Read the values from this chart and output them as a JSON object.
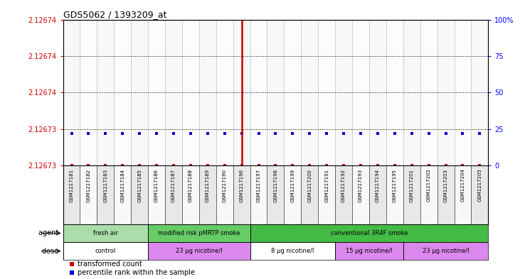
{
  "title": "GDS5062 / 1393209_at",
  "samples": [
    "GSM1217181",
    "GSM1217182",
    "GSM1217183",
    "GSM1217184",
    "GSM1217185",
    "GSM1217186",
    "GSM1217187",
    "GSM1217188",
    "GSM1217189",
    "GSM1217190",
    "GSM1217196",
    "GSM1217197",
    "GSM1217198",
    "GSM1217199",
    "GSM1217200",
    "GSM1217191",
    "GSM1217192",
    "GSM1217193",
    "GSM1217194",
    "GSM1217195",
    "GSM1217201",
    "GSM1217202",
    "GSM1217203",
    "GSM1217204",
    "GSM1217205"
  ],
  "blue_values": [
    22,
    22,
    22,
    22,
    22,
    22,
    22,
    22,
    22,
    22,
    22,
    22,
    22,
    22,
    22,
    22,
    22,
    22,
    22,
    22,
    22,
    22,
    22,
    22,
    22
  ],
  "highlight_sample": 10,
  "ymin": 2.126728,
  "ymax": 2.126748,
  "right_ticks": [
    0,
    25,
    50,
    75,
    100
  ],
  "left_tick_labels": [
    "2.12673",
    "2.12673",
    "2.12674",
    "2.12674",
    "2.12674"
  ],
  "agent_groups": [
    {
      "label": "fresh air",
      "start": 0,
      "end": 5,
      "color": "#AADDAA"
    },
    {
      "label": "modified risk pMRTP smoke",
      "start": 5,
      "end": 11,
      "color": "#66CC66"
    },
    {
      "label": "conventional 3R4F smoke",
      "start": 11,
      "end": 25,
      "color": "#44BB44"
    }
  ],
  "dose_groups": [
    {
      "label": "control",
      "start": 0,
      "end": 5,
      "color": "#FFFFFF"
    },
    {
      "label": "23 μg nicotine/l",
      "start": 5,
      "end": 11,
      "color": "#DD88EE"
    },
    {
      "label": "8 μg nicotine/l",
      "start": 11,
      "end": 16,
      "color": "#FFFFFF"
    },
    {
      "label": "15 μg nicotine/l",
      "start": 16,
      "end": 20,
      "color": "#DD88EE"
    },
    {
      "label": "23 μg nicotine/l",
      "start": 20,
      "end": 25,
      "color": "#DD88EE"
    }
  ],
  "red_color": "#CC0000",
  "blue_color": "#0000CC",
  "bg_color": "#FFFFFF",
  "legend_red": "transformed count",
  "legend_blue": "percentile rank within the sample"
}
